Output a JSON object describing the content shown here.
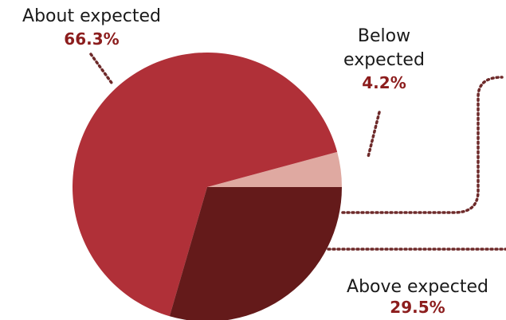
{
  "chart_data": {
    "type": "pie",
    "slices": [
      {
        "name": "About expected",
        "label": "About expected",
        "percent_label": "66.3%",
        "value": 66.3,
        "color": "#b03038"
      },
      {
        "name": "Below expected",
        "label": "Below expected",
        "percent_label": "4.2%",
        "value": 4.2,
        "color": "#dfa9a1"
      },
      {
        "name": "Above expected",
        "label": "Above expected",
        "percent_label": "29.5%",
        "value": 29.5,
        "color": "#641a1a"
      }
    ],
    "legend": "none",
    "start_angle_deg": 0,
    "direction": "counterclockwise"
  }
}
